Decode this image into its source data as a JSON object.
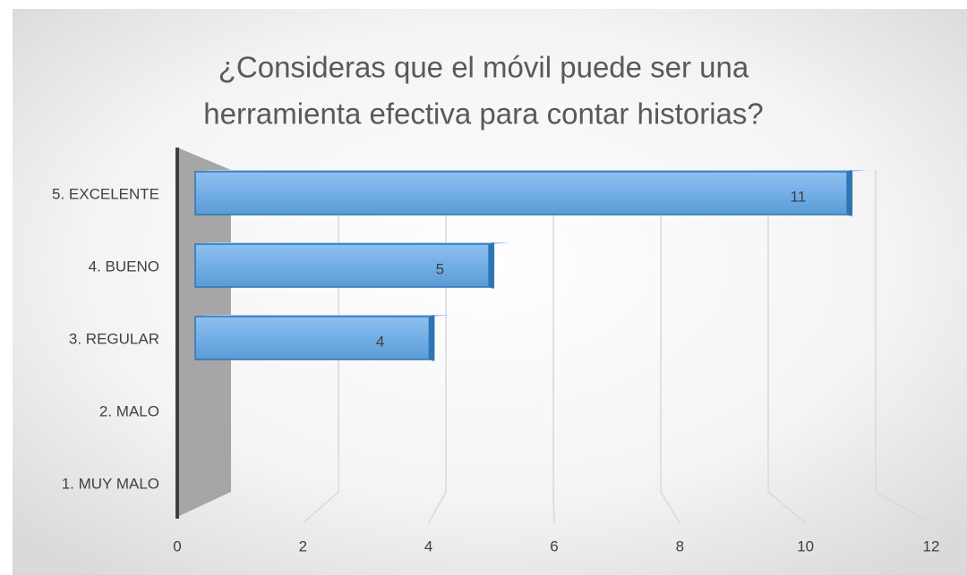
{
  "chart_data": {
    "type": "bar",
    "orientation": "horizontal",
    "title": [
      "¿Consideras que el móvil puede ser una",
      "herramienta efectiva para contar historias?"
    ],
    "categories": [
      "1. MUY MALO",
      "2. MALO",
      "3. REGULAR",
      "4. BUENO",
      "5. EXCELENTE"
    ],
    "values": [
      null,
      null,
      4,
      5,
      11
    ],
    "color": "#5b9bd5",
    "xlim": [
      0,
      12
    ],
    "xticks": [
      0,
      2,
      4,
      6,
      8,
      10,
      12
    ],
    "grid": true
  }
}
